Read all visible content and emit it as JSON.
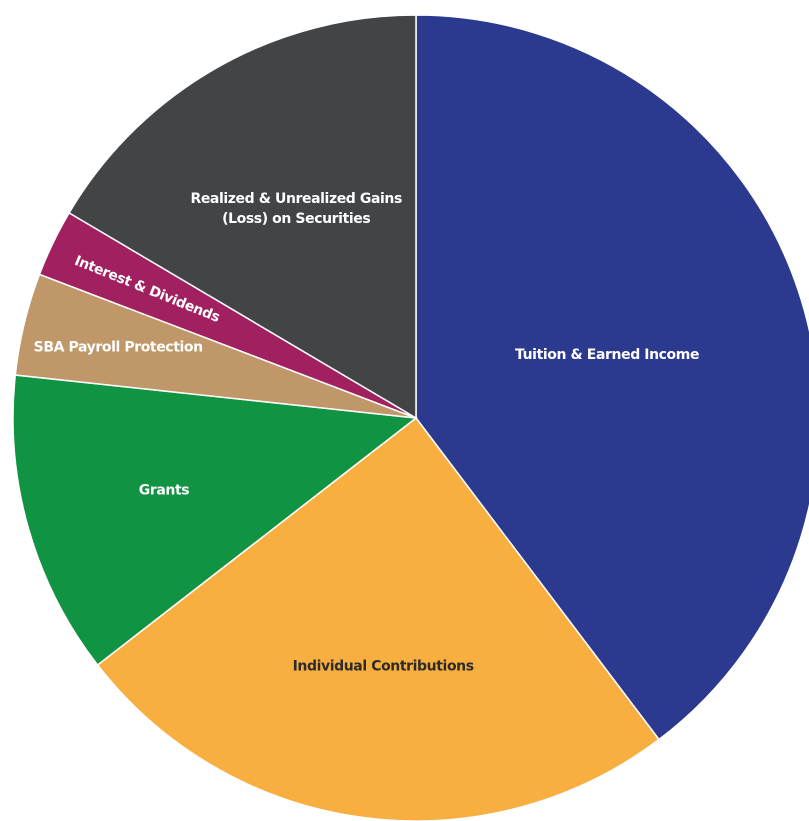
{
  "chart_data": {
    "type": "pie",
    "slices": [
      {
        "label": "Tuition & Earned Income",
        "value": 39.7,
        "color": "#2B3A8F",
        "label_color": "#ffffff"
      },
      {
        "label": "Individual Contributions",
        "value": 24.8,
        "color": "#F9AE40",
        "label_color": "#2b2b2b"
      },
      {
        "label": "Grants",
        "value": 12.2,
        "color": "#109342",
        "label_color": "#ffffff"
      },
      {
        "label": "SBA Payroll Protection",
        "value": 4.1,
        "color": "#C09769",
        "label_color": "#ffffff"
      },
      {
        "label": "Interest & Dividends",
        "value": 2.7,
        "color": "#A1205F",
        "label_color": "#ffffff"
      },
      {
        "label": "Realized & Unrealized Gains (Loss) on Securities",
        "value": 16.5,
        "color": "#434446",
        "label_color": "#ffffff"
      }
    ],
    "start_angle": "12 o'clock",
    "direction": "clockwise",
    "legend": "none"
  }
}
